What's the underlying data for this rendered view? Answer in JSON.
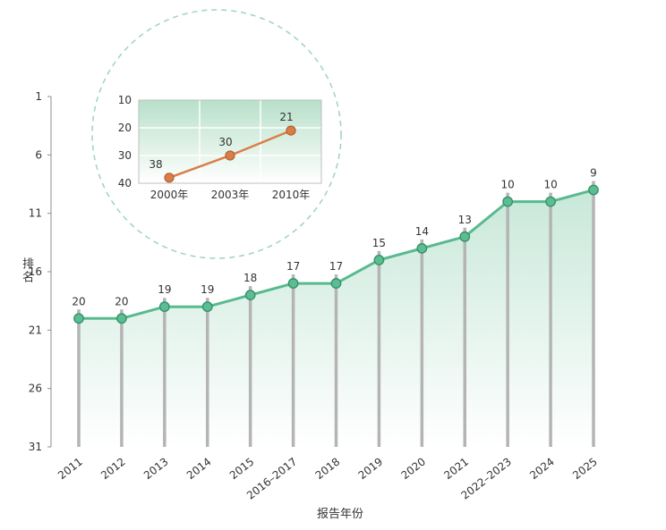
{
  "page": {
    "background_color": "#ffffff",
    "text_color": "#333333"
  },
  "chart_data": [
    {
      "id": "main-ranking-trend",
      "type": "line",
      "title": "",
      "xlabel": "报告年份",
      "ylabel": "排名",
      "categories": [
        "2011",
        "2012",
        "2013",
        "2014",
        "2015",
        "2016–2017",
        "2018",
        "2019",
        "2020",
        "2021",
        "2022–2023",
        "2024",
        "2025"
      ],
      "values": [
        20,
        20,
        19,
        19,
        18,
        17,
        17,
        15,
        14,
        13,
        10,
        10,
        9
      ],
      "y_ticks": [
        1,
        6,
        11,
        16,
        21,
        26,
        31
      ],
      "y_range": [
        1,
        31
      ],
      "y_axis_inverted": true,
      "grid": false,
      "legend": "none",
      "style": {
        "line_color": "#58ba8e",
        "marker_fill": "#5cbd92",
        "marker_stroke": "#35926b",
        "stem_color": "#b4b4b4",
        "area_top_color": "rgba(98,189,147,0.35)",
        "area_bottom_color": "rgba(98,189,147,0)",
        "axis_color": "#8c8c8c",
        "text_color": "#333333"
      }
    },
    {
      "id": "inset-history",
      "type": "line",
      "title": "",
      "xlabel": "",
      "ylabel": "",
      "categories": [
        "2000年",
        "2003年",
        "2010年"
      ],
      "values": [
        38,
        30,
        21
      ],
      "y_ticks": [
        10,
        20,
        30,
        40
      ],
      "y_range": [
        10,
        40
      ],
      "y_axis_inverted": true,
      "grid": true,
      "legend": "none",
      "style": {
        "line_color": "#d97e49",
        "marker_fill": "#d97e49",
        "marker_stroke": "#b26032",
        "bg_top_color": "#b7e0ca",
        "bg_mid_color": "#d8eee1",
        "bg_bottom_color": "#ffffff",
        "grid_color": "#ffffff",
        "border_color": "#bfbfbf",
        "circle_outline_color": "#9fd4bb",
        "text_color": "#333333"
      }
    }
  ]
}
